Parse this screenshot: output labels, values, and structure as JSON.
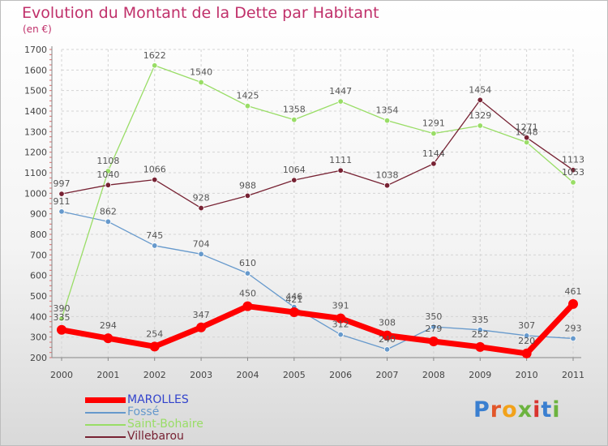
{
  "header": {
    "title": "Evolution du Montant de la Dette par Habitant",
    "subtitle": "(en €)"
  },
  "logo": {
    "letters": [
      "P",
      "r",
      "o",
      "x",
      "i",
      "t",
      "i"
    ],
    "colors": [
      "#3a7fd0",
      "#e2562a",
      "#f2a21a",
      "#6cb33f",
      "#d8342f",
      "#3a7fd0",
      "#6cb33f"
    ]
  },
  "chart_data": {
    "type": "line",
    "title": "Evolution du Montant de la Dette par Habitant",
    "subtitle": "(en €)",
    "x": [
      "2000",
      "2001",
      "2002",
      "2003",
      "2004",
      "2005",
      "2006",
      "2007",
      "2008",
      "2009",
      "2010",
      "2011"
    ],
    "ylim": [
      200,
      1700
    ],
    "yticks": [
      "200",
      "300",
      "400",
      "500",
      "600",
      "700",
      "800",
      "900",
      "1000",
      "1100",
      "1200",
      "1300",
      "1400",
      "1500",
      "1600",
      "1700"
    ],
    "grid": true,
    "legend_position": "bottom-left",
    "series": [
      {
        "name": "MAROLLES",
        "color": "#ff0000",
        "highlight": true,
        "values": [
          335,
          294,
          254,
          347,
          450,
          421,
          391,
          308,
          279,
          252,
          220,
          461
        ]
      },
      {
        "name": "Fossé",
        "color": "#6699cc",
        "values": [
          911,
          862,
          745,
          704,
          610,
          446,
          312,
          240,
          350,
          335,
          307,
          293
        ]
      },
      {
        "name": "Saint-Bohaire",
        "color": "#99dd66",
        "values": [
          390,
          1108,
          1622,
          1540,
          1425,
          1358,
          1447,
          1354,
          1291,
          1329,
          1248,
          1053
        ]
      },
      {
        "name": "Villebarou",
        "color": "#772233",
        "values": [
          997,
          1040,
          1066,
          928,
          988,
          1064,
          1111,
          1038,
          1144,
          1454,
          1271,
          1113
        ]
      }
    ]
  }
}
